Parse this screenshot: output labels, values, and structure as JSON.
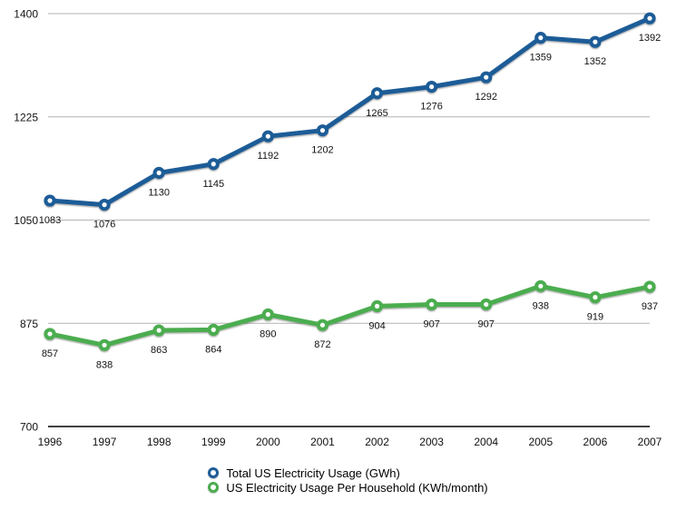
{
  "chart_data": {
    "type": "line",
    "title": "",
    "xlabel": "",
    "ylabel": "",
    "x": [
      "1996",
      "1997",
      "1998",
      "1999",
      "2000",
      "2001",
      "2002",
      "2003",
      "2004",
      "2005",
      "2006",
      "2007"
    ],
    "series": [
      {
        "name": "Total US Electricity Usage (GWh)",
        "color": "#1e5c97",
        "values": [
          1083,
          1076,
          1130,
          1145,
          1192,
          1202,
          1265,
          1276,
          1292,
          1359,
          1352,
          1392
        ]
      },
      {
        "name": "US Electricity Usage Per Household (KWh/month)",
        "color": "#4bad4f",
        "values": [
          857,
          838,
          863,
          864,
          890,
          872,
          904,
          907,
          907,
          938,
          919,
          937
        ]
      }
    ],
    "ylim": [
      700,
      1400
    ],
    "yticks": [
      700,
      875,
      1050,
      1225,
      1400
    ],
    "grid": true,
    "legend_position": "bottom",
    "point_labels_visible": true
  },
  "style": {
    "grid_color": "#b3b3b3",
    "axis_color": "#000000",
    "tick_label_color": "#111111",
    "value_label_color": "#111111",
    "background": "#ffffff"
  }
}
